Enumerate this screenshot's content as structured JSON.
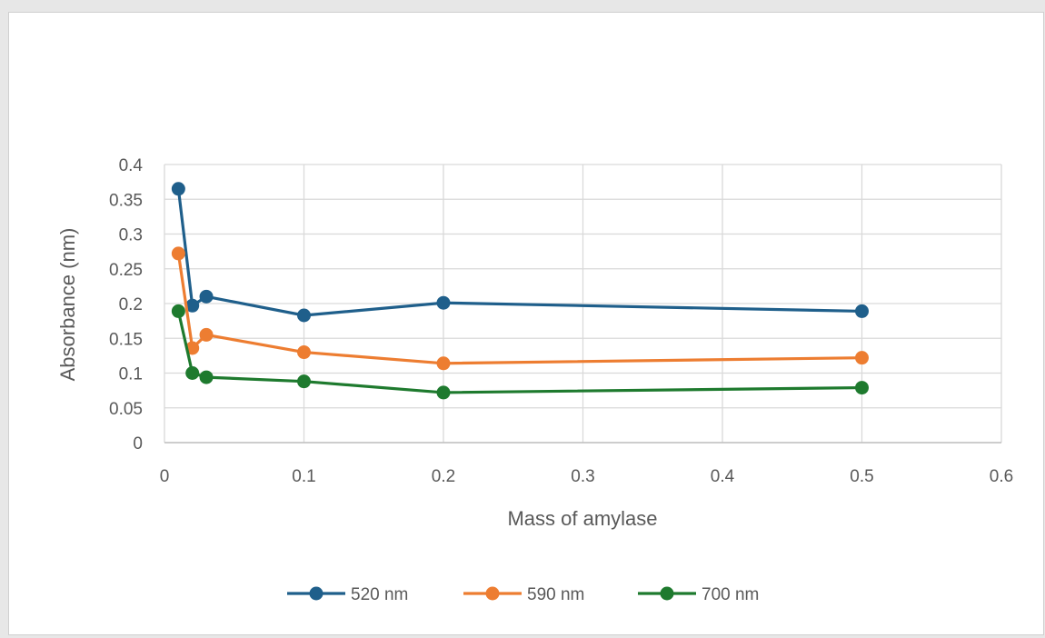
{
  "chart_data": {
    "type": "line",
    "title": "",
    "xlabel": "Mass of amylase",
    "ylabel": "Absorbance (nm)",
    "xlim": [
      0,
      0.6
    ],
    "ylim": [
      0,
      0.4
    ],
    "x_ticks": [
      0,
      0.1,
      0.2,
      0.3,
      0.4,
      0.5,
      0.6
    ],
    "y_ticks": [
      0,
      0.05,
      0.1,
      0.15,
      0.2,
      0.25,
      0.3,
      0.35,
      0.4
    ],
    "grid": true,
    "legend_position": "bottom",
    "x": [
      0.01,
      0.02,
      0.03,
      0.1,
      0.2,
      0.5
    ],
    "series": [
      {
        "name": "520 nm",
        "color": "#1f5f8b",
        "values": [
          0.365,
          0.197,
          0.21,
          0.183,
          0.201,
          0.189
        ]
      },
      {
        "name": "590 nm",
        "color": "#ed7d31",
        "values": [
          0.272,
          0.136,
          0.155,
          0.13,
          0.114,
          0.122
        ]
      },
      {
        "name": "700 nm",
        "color": "#1e7a2e",
        "values": [
          0.189,
          0.1,
          0.094,
          0.088,
          0.072,
          0.079
        ]
      }
    ]
  }
}
